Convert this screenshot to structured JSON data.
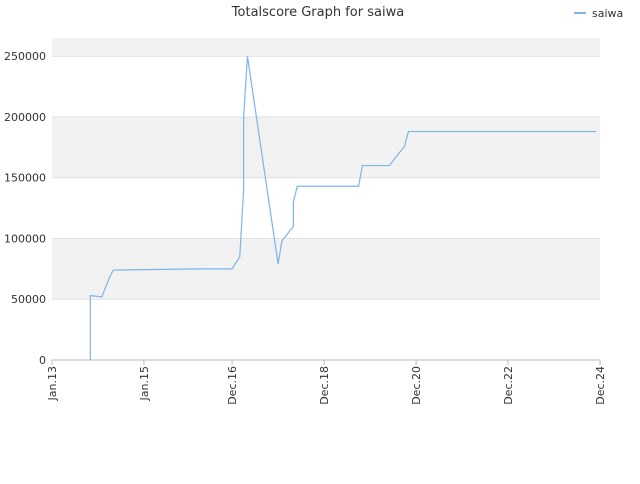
{
  "chart_data": {
    "type": "line",
    "title": "Totalscore Graph for saiwa",
    "x": [
      "2013-11",
      "2013-11",
      "2014-02",
      "2014-04",
      "2014-05",
      "2016-04",
      "2016-12",
      "2017-02",
      "2017-03",
      "2017-03",
      "2017-04",
      "2017-12",
      "2018-01",
      "2018-04",
      "2018-04",
      "2018-05",
      "2019-09",
      "2019-10",
      "2020-05",
      "2020-08",
      "2020-09",
      "2020-10",
      "2024-11"
    ],
    "series": [
      {
        "name": "saiwa",
        "color": "#7cb5ec",
        "values": [
          0,
          53000,
          52000,
          68000,
          74000,
          75000,
          75000,
          85000,
          140000,
          200000,
          250000,
          79000,
          98000,
          110000,
          130000,
          143000,
          143000,
          160000,
          160000,
          172000,
          176000,
          188000,
          188000
        ]
      }
    ],
    "xlim": [
      "2013-01",
      "2024-12"
    ],
    "xticks": [
      {
        "value": "2013-01",
        "label": "Jan.13"
      },
      {
        "value": "2015-01",
        "label": "Jan.15"
      },
      {
        "value": "2016-12",
        "label": "Dec.16"
      },
      {
        "value": "2018-12",
        "label": "Dec.18"
      },
      {
        "value": "2020-12",
        "label": "Dec.20"
      },
      {
        "value": "2022-12",
        "label": "Dec.22"
      },
      {
        "value": "2024-12",
        "label": "Dec.24"
      }
    ],
    "ylim": [
      0,
      265000
    ],
    "yticks": [
      0,
      50000,
      100000,
      150000,
      200000,
      250000
    ],
    "grid": true,
    "legend": "top-right"
  }
}
